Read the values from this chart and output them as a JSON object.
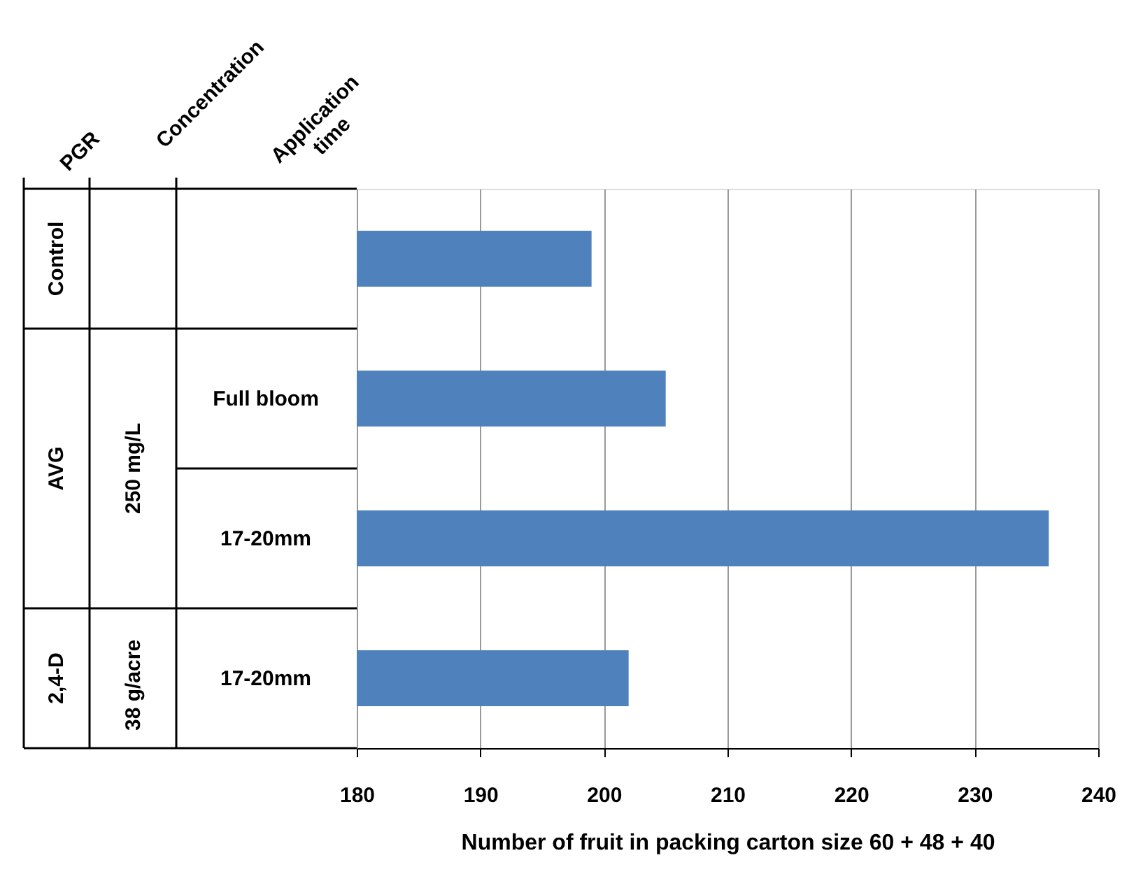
{
  "chart_data": {
    "type": "bar",
    "orientation": "horizontal",
    "categories": [
      null,
      "Full bloom",
      "17-20mm",
      "17-20mm"
    ],
    "values": [
      199,
      205,
      236,
      202
    ],
    "color": "#4f81bd",
    "xlabel": "Number of fruit in packing carton size 60 + 48 + 40",
    "xlim": [
      180,
      240
    ],
    "xticks": [
      180,
      190,
      200,
      210,
      220,
      230,
      240
    ],
    "grid": "x",
    "annotations": [
      "PGR",
      "Concentration",
      "Application time",
      "Control",
      "AVG",
      "2,4-D",
      "250 mg/L",
      "38 g/acre"
    ]
  }
}
